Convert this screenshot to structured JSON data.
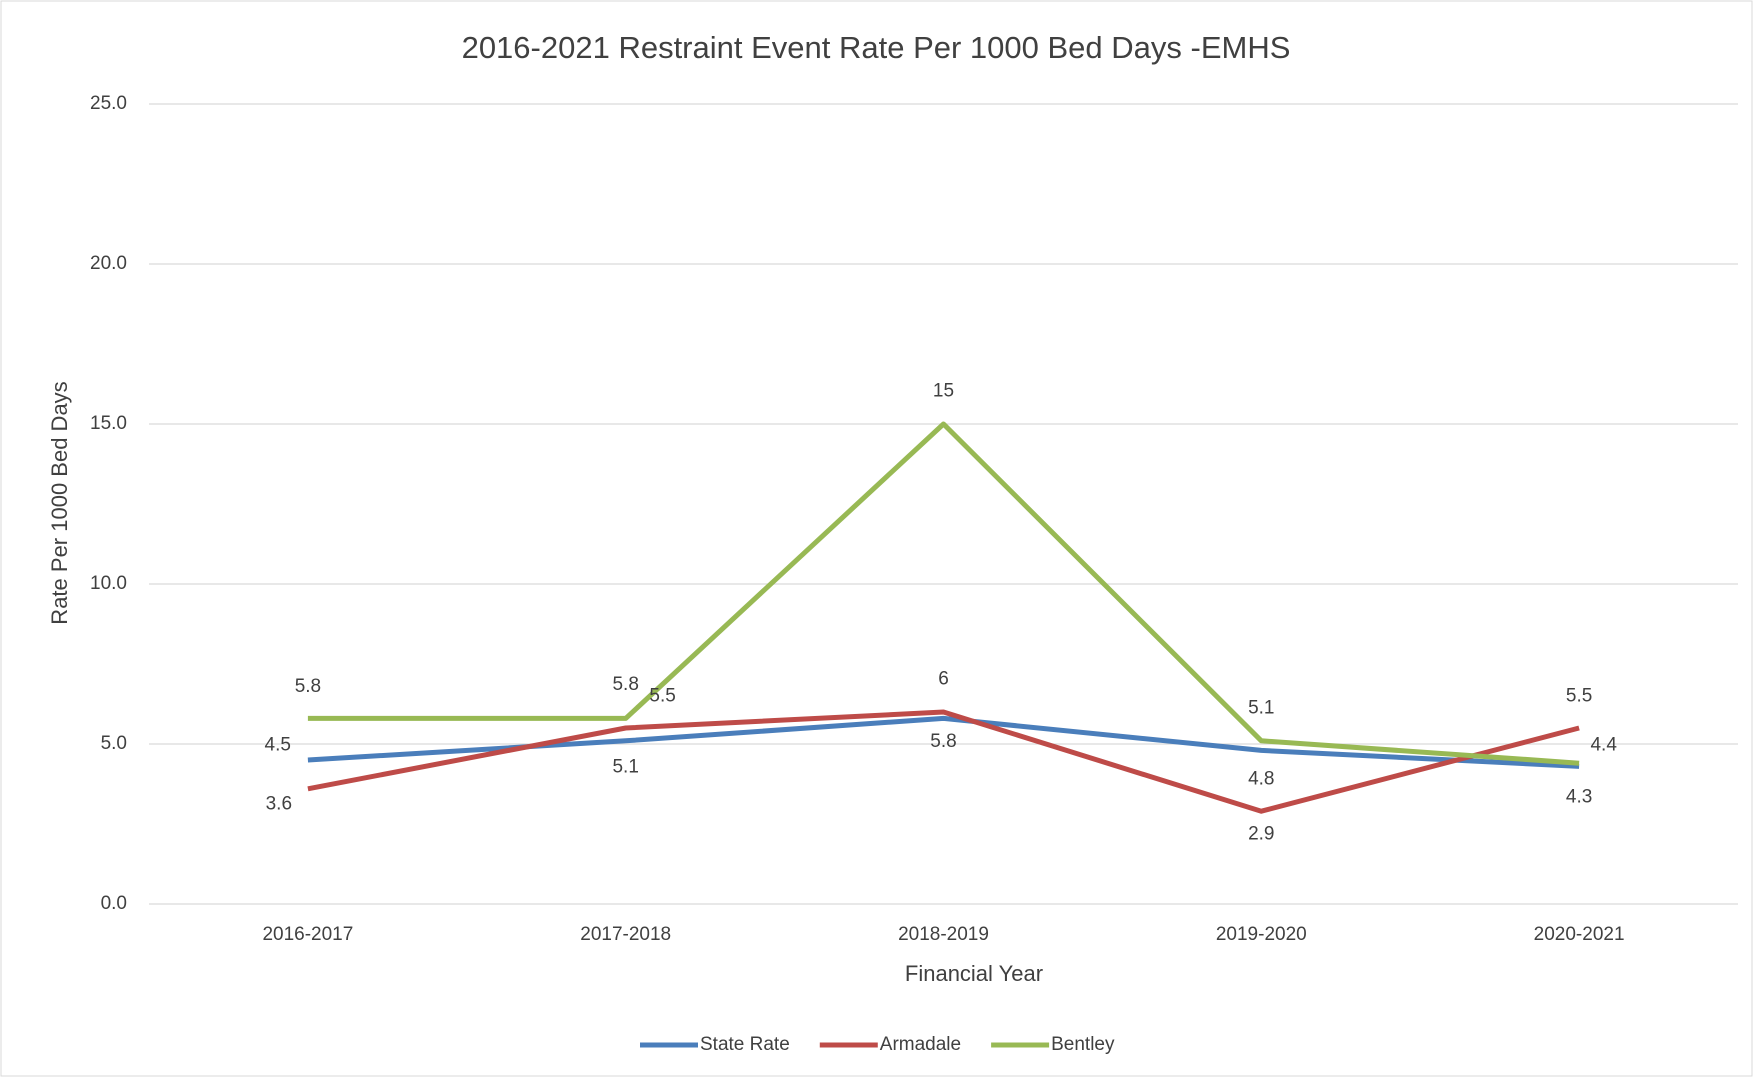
{
  "chart_data": {
    "type": "line",
    "title": "2016-2021 Restraint Event Rate Per 1000 Bed Days -EMHS",
    "x_label": "Financial Year",
    "y_label": "Rate Per 1000 Bed Days",
    "categories": [
      "2016-2017",
      "2017-2018",
      "2018-2019",
      "2019-2020",
      "2020-2021"
    ],
    "series": [
      {
        "name": "State Rate",
        "color": "#4a7ebb",
        "values": [
          4.5,
          5.1,
          5.8,
          4.8,
          4.3
        ]
      },
      {
        "name": "Armadale",
        "color": "#be4b48",
        "values": [
          3.6,
          5.5,
          6,
          2.9,
          5.5
        ]
      },
      {
        "name": "Bentley",
        "color": "#98b954",
        "values": [
          5.8,
          5.8,
          15,
          5.1,
          4.4
        ]
      }
    ],
    "ylim": [
      0,
      25
    ],
    "yticks": [
      {
        "value": 0,
        "label": "0.0"
      },
      {
        "value": 5,
        "label": "5.0"
      },
      {
        "value": 10,
        "label": "10.0"
      },
      {
        "value": 15,
        "label": "15.0"
      },
      {
        "value": 20,
        "label": "20.0"
      },
      {
        "value": 25,
        "label": "25.0"
      }
    ],
    "grid": true,
    "legend": "bottom"
  }
}
